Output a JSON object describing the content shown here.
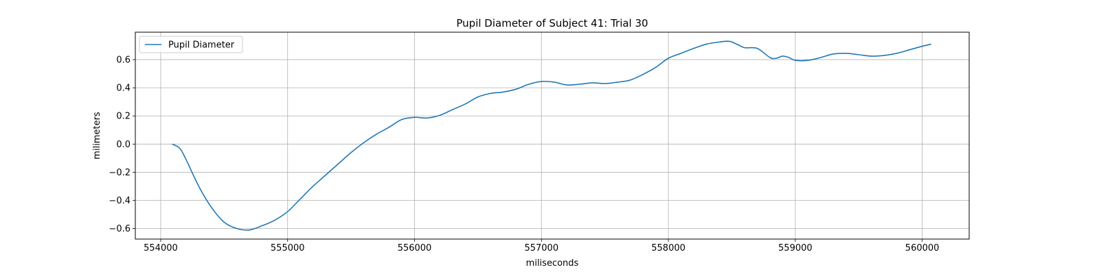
{
  "chart_data": {
    "type": "line",
    "title": "Pupil Diameter of Subject 41: Trial 30",
    "xlabel": "miliseconds",
    "ylabel": "milimeters",
    "xlim": [
      553800,
      560370
    ],
    "ylim": [
      -0.675,
      0.795
    ],
    "xticks": [
      554000,
      555000,
      556000,
      557000,
      558000,
      559000,
      560000
    ],
    "yticks": [
      -0.6,
      -0.4,
      -0.2,
      0.0,
      0.2,
      0.4,
      0.6
    ],
    "xtick_labels": [
      "554000",
      "555000",
      "556000",
      "557000",
      "558000",
      "559000",
      "560000"
    ],
    "ytick_labels": [
      "−0.6",
      "−0.4",
      "−0.2",
      "0.0",
      "0.2",
      "0.4",
      "0.6"
    ],
    "grid": true,
    "legend": {
      "position": "top-left",
      "entries": [
        "Pupil Diameter"
      ]
    },
    "series": [
      {
        "name": "Pupil Diameter",
        "color": "#1f77b4",
        "x": [
          554090,
          554150,
          554200,
          554300,
          554400,
          554500,
          554600,
          554700,
          554800,
          554900,
          555000,
          555100,
          555200,
          555300,
          555400,
          555500,
          555600,
          555700,
          555800,
          555900,
          556000,
          556100,
          556200,
          556300,
          556400,
          556500,
          556600,
          556700,
          556800,
          556900,
          557000,
          557100,
          557200,
          557300,
          557400,
          557500,
          557600,
          557700,
          557800,
          557900,
          558000,
          558100,
          558200,
          558300,
          558400,
          558480,
          558550,
          558600,
          558700,
          558800,
          558850,
          558900,
          558950,
          559000,
          559100,
          559200,
          559300,
          559400,
          559500,
          559600,
          559700,
          559800,
          559900,
          560000,
          560070
        ],
        "y": [
          0.0,
          -0.03,
          -0.11,
          -0.3,
          -0.45,
          -0.555,
          -0.6,
          -0.61,
          -0.58,
          -0.54,
          -0.48,
          -0.39,
          -0.3,
          -0.22,
          -0.14,
          -0.06,
          0.01,
          0.07,
          0.12,
          0.175,
          0.19,
          0.185,
          0.205,
          0.245,
          0.285,
          0.335,
          0.36,
          0.37,
          0.39,
          0.425,
          0.445,
          0.44,
          0.42,
          0.425,
          0.435,
          0.43,
          0.44,
          0.455,
          0.495,
          0.545,
          0.61,
          0.645,
          0.68,
          0.71,
          0.725,
          0.73,
          0.705,
          0.685,
          0.68,
          0.615,
          0.61,
          0.625,
          0.615,
          0.595,
          0.595,
          0.615,
          0.64,
          0.645,
          0.635,
          0.625,
          0.63,
          0.645,
          0.67,
          0.695,
          0.71
        ]
      }
    ]
  }
}
